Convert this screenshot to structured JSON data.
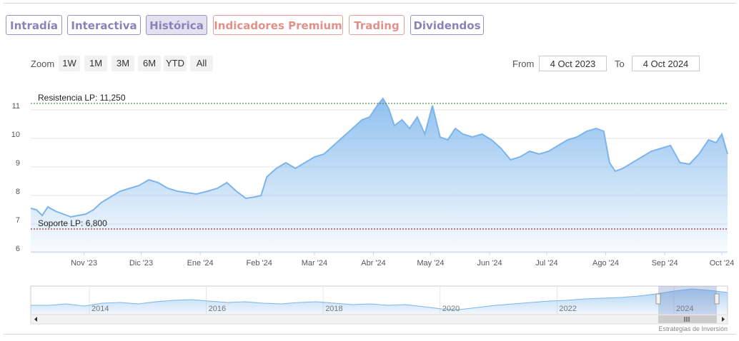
{
  "tabs": [
    {
      "label": "Intradía",
      "state": "normal"
    },
    {
      "label": "Interactiva",
      "state": "normal"
    },
    {
      "label": "Histórica",
      "state": "active"
    },
    {
      "label": "Indicadores Premium",
      "state": "premium"
    },
    {
      "label": "Trading",
      "state": "premium"
    },
    {
      "label": "Dividendos",
      "state": "normal"
    }
  ],
  "toolbar": {
    "zoom_label": "Zoom",
    "zoom_buttons": [
      "1W",
      "1M",
      "3M",
      "6M",
      "YTD",
      "All"
    ],
    "from_label": "From",
    "from_value": "4 Oct 2023",
    "to_label": "To",
    "to_value": "4 Oct 2024"
  },
  "credit": "Estrategias de Inversión",
  "colors": {
    "series": "#7cb5ec",
    "tab_border": "#9a93c4",
    "premium": "#e2918a",
    "resistance": "#2e7d32",
    "support": "#8b0000"
  },
  "chart_data": {
    "type": "area",
    "ylim": [
      6,
      11.5
    ],
    "y_ticks": [
      6,
      7,
      8,
      9,
      10,
      11
    ],
    "x_range": [
      "2023-10-04",
      "2024-10-04"
    ],
    "x_ticks": [
      {
        "date": "2023-11-01",
        "label": "Nov '23"
      },
      {
        "date": "2023-12-01",
        "label": "Dic '23"
      },
      {
        "date": "2024-01-01",
        "label": "Ene '24"
      },
      {
        "date": "2024-02-01",
        "label": "Feb '24"
      },
      {
        "date": "2024-03-01",
        "label": "Mar '24"
      },
      {
        "date": "2024-04-01",
        "label": "Abr '24"
      },
      {
        "date": "2024-05-01",
        "label": "May '24"
      },
      {
        "date": "2024-06-01",
        "label": "Jun '24"
      },
      {
        "date": "2024-07-01",
        "label": "Jul '24"
      },
      {
        "date": "2024-08-01",
        "label": "Ago '24"
      },
      {
        "date": "2024-09-01",
        "label": "Sep '24"
      },
      {
        "date": "2024-10-01",
        "label": "Oct '24"
      }
    ],
    "lines": [
      {
        "label": "Resistencia LP: 11,250",
        "value": 11.25,
        "color": "#2e7d32"
      },
      {
        "label": "Soporte LP: 6,800",
        "value": 6.8,
        "color": "#8b0000"
      }
    ],
    "series": [
      {
        "x": [
          "2023-10-04",
          "2023-10-07",
          "2023-10-10",
          "2023-10-13",
          "2023-10-17",
          "2023-10-21",
          "2023-10-25",
          "2023-10-29",
          "2023-11-02",
          "2023-11-06",
          "2023-11-10",
          "2023-11-15",
          "2023-11-20",
          "2023-11-25",
          "2023-11-30",
          "2023-12-05",
          "2023-12-10",
          "2023-12-15",
          "2023-12-20",
          "2023-12-25",
          "2023-12-30",
          "2024-01-05",
          "2024-01-10",
          "2024-01-15",
          "2024-01-20",
          "2024-01-25",
          "2024-01-30",
          "2024-02-02",
          "2024-02-05",
          "2024-02-10",
          "2024-02-15",
          "2024-02-20",
          "2024-02-25",
          "2024-03-01",
          "2024-03-06",
          "2024-03-11",
          "2024-03-16",
          "2024-03-21",
          "2024-03-26",
          "2024-03-30",
          "2024-04-03",
          "2024-04-06",
          "2024-04-09",
          "2024-04-12",
          "2024-04-16",
          "2024-04-20",
          "2024-04-24",
          "2024-04-28",
          "2024-05-02",
          "2024-05-06",
          "2024-05-10",
          "2024-05-14",
          "2024-05-18",
          "2024-05-23",
          "2024-05-28",
          "2024-06-02",
          "2024-06-07",
          "2024-06-12",
          "2024-06-17",
          "2024-06-22",
          "2024-06-27",
          "2024-07-02",
          "2024-07-07",
          "2024-07-12",
          "2024-07-17",
          "2024-07-22",
          "2024-07-27",
          "2024-07-31",
          "2024-08-03",
          "2024-08-06",
          "2024-08-10",
          "2024-08-15",
          "2024-08-20",
          "2024-08-25",
          "2024-08-30",
          "2024-09-04",
          "2024-09-09",
          "2024-09-14",
          "2024-09-19",
          "2024-09-24",
          "2024-09-28",
          "2024-10-01",
          "2024-10-04"
        ],
        "values": [
          7.4,
          7.35,
          7.15,
          7.45,
          7.3,
          7.2,
          7.1,
          7.15,
          7.2,
          7.35,
          7.6,
          7.8,
          8.0,
          8.1,
          8.2,
          8.4,
          8.3,
          8.1,
          8.0,
          7.95,
          7.9,
          8.0,
          8.1,
          8.3,
          8.0,
          7.75,
          7.8,
          7.85,
          8.5,
          8.8,
          9.0,
          8.8,
          9.0,
          9.2,
          9.3,
          9.6,
          9.9,
          10.2,
          10.5,
          10.6,
          11.0,
          11.25,
          10.9,
          10.3,
          10.5,
          10.2,
          10.6,
          10.0,
          11.0,
          9.9,
          9.8,
          10.2,
          10.0,
          9.9,
          10.0,
          9.8,
          9.5,
          9.1,
          9.2,
          9.4,
          9.3,
          9.4,
          9.6,
          9.8,
          9.9,
          10.1,
          10.2,
          10.1,
          9.0,
          8.7,
          8.8,
          9.0,
          9.2,
          9.4,
          9.5,
          9.6,
          9.0,
          8.95,
          9.3,
          9.8,
          9.7,
          10.0,
          9.3
        ]
      }
    ],
    "navigator": {
      "x_labels": [
        "2014",
        "2016",
        "2018",
        "2020",
        "2022",
        "2024"
      ]
    }
  }
}
